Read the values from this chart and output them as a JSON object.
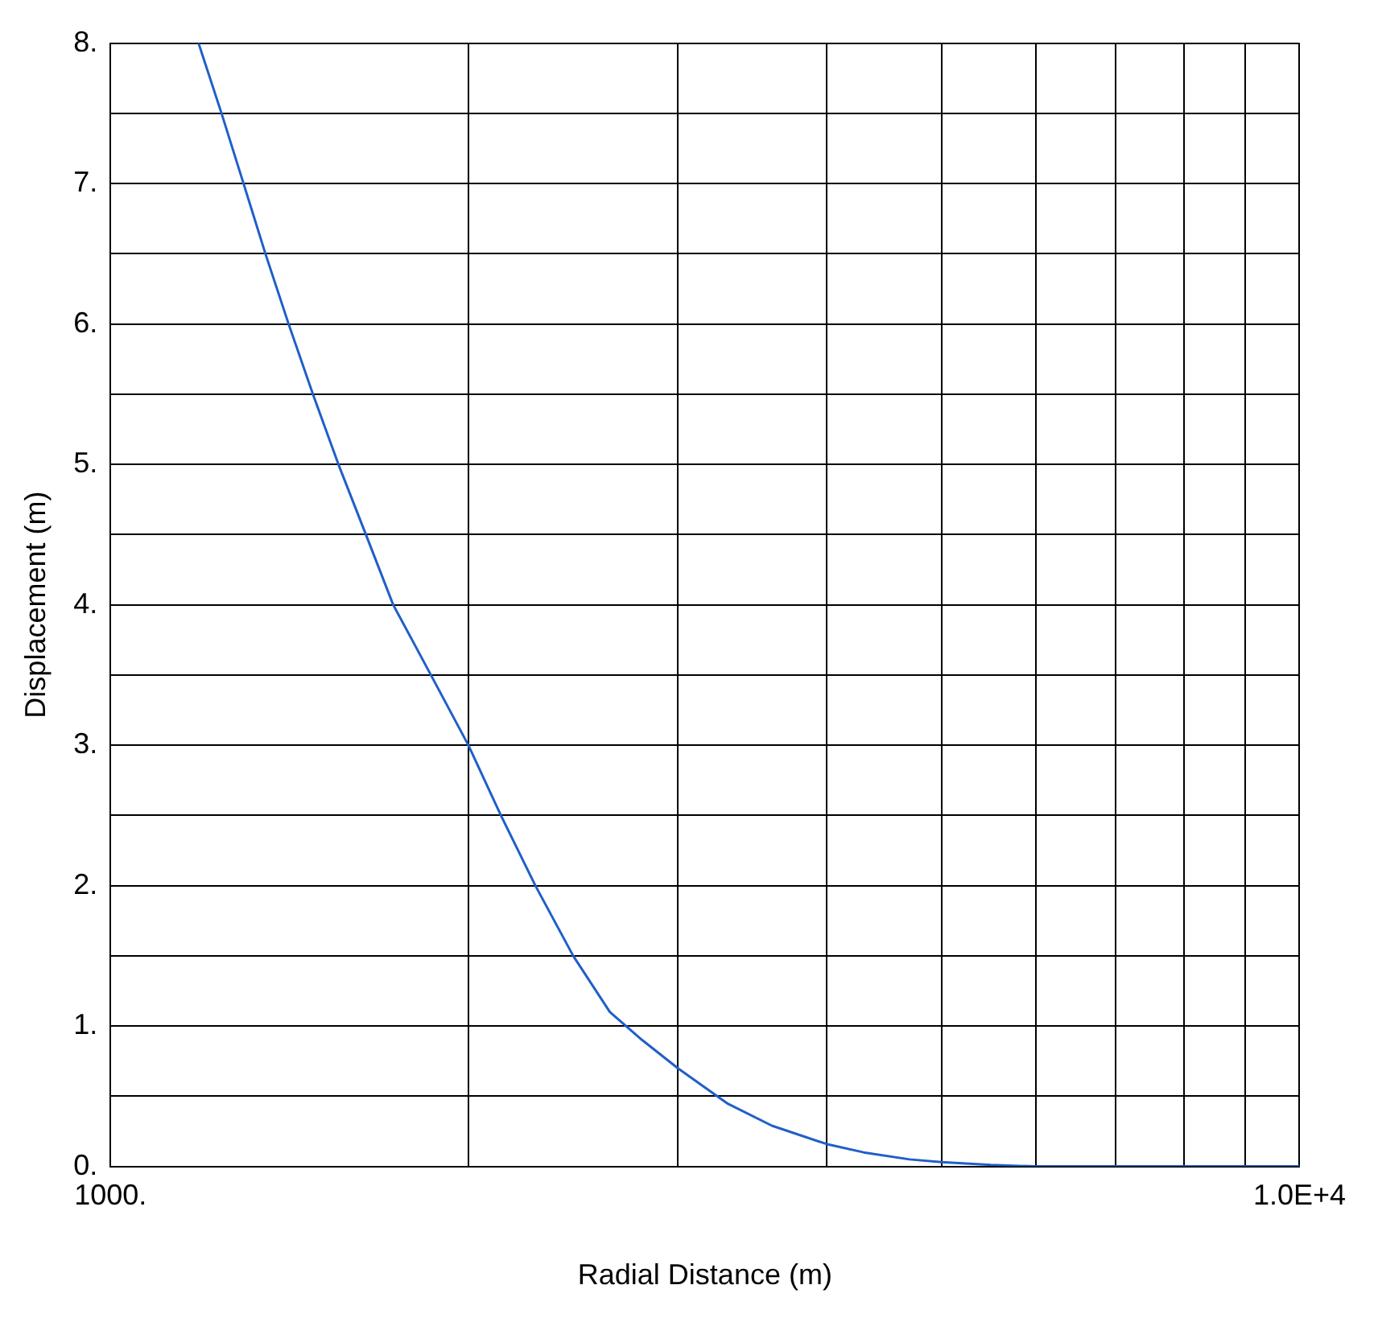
{
  "chart_data": {
    "type": "line",
    "xlabel": "Radial Distance (m)",
    "ylabel": "Displacement (m)",
    "log": "x",
    "grid": true,
    "legend": false,
    "marker": "none",
    "line_style": "solid",
    "xlim": [
      1000,
      10000
    ],
    "ylim": [
      0,
      8
    ],
    "xticks": [
      {
        "value": 1000,
        "label": "1000."
      },
      {
        "value": 2000,
        "label": null
      },
      {
        "value": 3000,
        "label": null
      },
      {
        "value": 4000,
        "label": null
      },
      {
        "value": 5000,
        "label": null
      },
      {
        "value": 6000,
        "label": null
      },
      {
        "value": 7000,
        "label": null
      },
      {
        "value": 8000,
        "label": null
      },
      {
        "value": 9000,
        "label": null
      },
      {
        "value": 10000,
        "label": "1.0E+4"
      }
    ],
    "yticks": [
      {
        "value": 0,
        "label": "0."
      },
      {
        "value": 0.5,
        "label": null
      },
      {
        "value": 1,
        "label": "1."
      },
      {
        "value": 1.5,
        "label": null
      },
      {
        "value": 2,
        "label": "2."
      },
      {
        "value": 2.5,
        "label": null
      },
      {
        "value": 3,
        "label": "3."
      },
      {
        "value": 3.5,
        "label": null
      },
      {
        "value": 4,
        "label": "4."
      },
      {
        "value": 4.5,
        "label": null
      },
      {
        "value": 5,
        "label": "5."
      },
      {
        "value": 5.5,
        "label": null
      },
      {
        "value": 6,
        "label": "6."
      },
      {
        "value": 6.5,
        "label": null
      },
      {
        "value": 7,
        "label": "7."
      },
      {
        "value": 7.5,
        "label": null
      },
      {
        "value": 8,
        "label": "8."
      }
    ],
    "x": [
      1186,
      1240,
      1294,
      1350,
      1412,
      1480,
      1555,
      1640,
      1729,
      1860,
      2000,
      2130,
      2277,
      2450,
      2630,
      2800,
      3000,
      3300,
      3600,
      4000,
      4300,
      4700,
      5000,
      5500,
      6000,
      7000,
      8000,
      9000,
      10000
    ],
    "series": [
      {
        "color": "#1f5fc8",
        "values": [
          8,
          7.5,
          7,
          6.5,
          6,
          5.5,
          5,
          4.5,
          4,
          3.5,
          3,
          2.5,
          2,
          1.5,
          1.1,
          0.9,
          0.7,
          0.45,
          0.29,
          0.16,
          0.1,
          0.05,
          0.03,
          0.01,
          0,
          0,
          0,
          0,
          0
        ]
      }
    ]
  }
}
